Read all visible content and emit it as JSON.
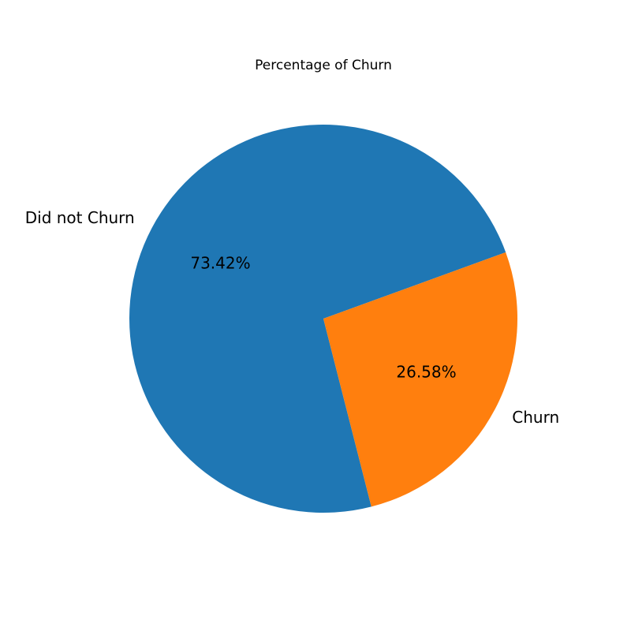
{
  "chart_data": {
    "type": "pie",
    "title": "Percentage of Churn",
    "categories": [
      "Did not Churn",
      "Churn"
    ],
    "values": [
      73.42,
      26.58
    ],
    "value_labels": [
      "73.42%",
      "26.58%"
    ],
    "colors": [
      "#1f77b4",
      "#ff7f0e"
    ],
    "legend": "none"
  }
}
